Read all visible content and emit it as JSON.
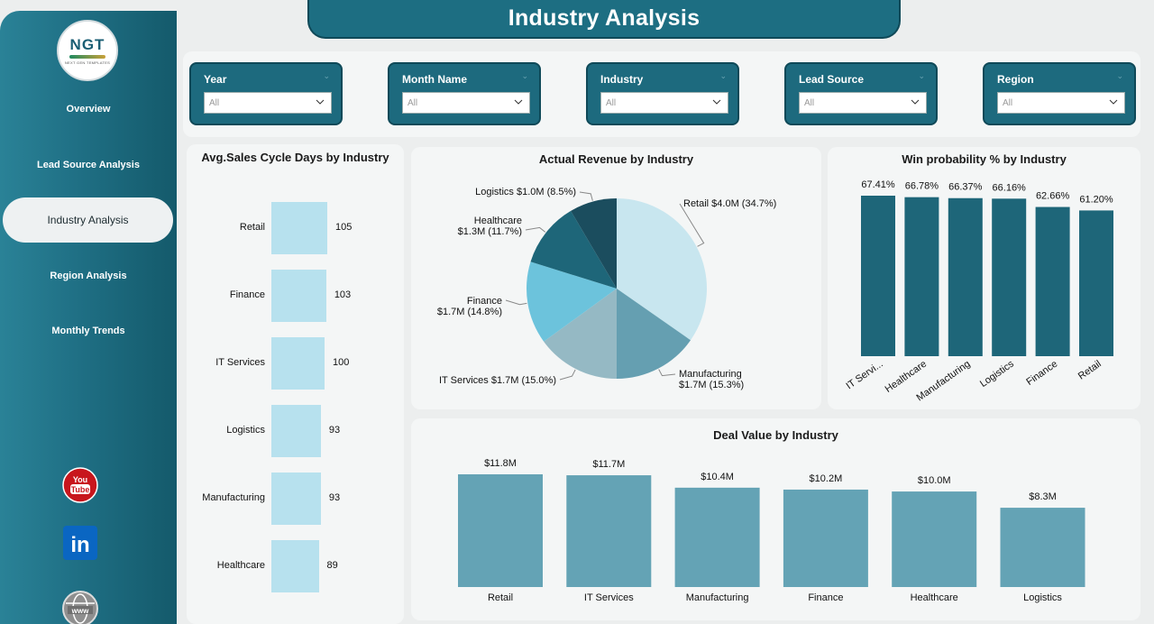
{
  "header": {
    "title": "Industry  Analysis"
  },
  "logo": {
    "mark": "NGT",
    "tagline": "NEXT GEN TEMPLATES"
  },
  "sidebar": {
    "items": [
      {
        "label": "Overview"
      },
      {
        "label": "Lead Source Analysis"
      },
      {
        "label": "Industry Analysis",
        "active": true
      },
      {
        "label": "Region Analysis"
      },
      {
        "label": "Monthly Trends"
      }
    ],
    "social": [
      {
        "icon": "youtube-icon",
        "label": "You Tube"
      },
      {
        "icon": "linkedin-icon",
        "label": "in"
      },
      {
        "icon": "globe-icon",
        "label": "www"
      }
    ]
  },
  "filters": [
    {
      "label": "Year",
      "value": "All"
    },
    {
      "label": "Month Name",
      "value": "All"
    },
    {
      "label": "Industry",
      "value": "All"
    },
    {
      "label": "Lead Source",
      "value": "All"
    },
    {
      "label": "Region",
      "value": "All"
    }
  ],
  "colors": {
    "sidebar": "#1f6f84",
    "hbar": "#b7e1ee",
    "win_bar": "#1e6679",
    "deal_bar": "#64a3b5",
    "pie": [
      "#c8e6ef",
      "#659fb1",
      "#95b9c4",
      "#6cc3dc",
      "#1e6679",
      "#1b4d5e"
    ]
  },
  "chart_data": [
    {
      "id": "avg-sales-cycle",
      "type": "bar",
      "orientation": "horizontal",
      "title": "Avg.Sales Cycle Days by Industry",
      "categories": [
        "Retail",
        "Finance",
        "IT Services",
        "Logistics",
        "Manufacturing",
        "Healthcare"
      ],
      "values": [
        105,
        103,
        100,
        93,
        93,
        89
      ],
      "value_labels": [
        "105",
        "103",
        "100",
        "93",
        "93",
        "89"
      ]
    },
    {
      "id": "actual-revenue",
      "type": "pie",
      "title": "Actual Revenue by Industry",
      "slices": [
        {
          "name": "Retail",
          "value": 4.0,
          "percent": 34.7,
          "label_lines": [
            "Retail $4.0M (34.7%)"
          ]
        },
        {
          "name": "Manufacturing",
          "value": 1.7,
          "percent": 15.3,
          "label_lines": [
            "Manufacturing",
            "$1.7M (15.3%)"
          ]
        },
        {
          "name": "IT Services",
          "value": 1.7,
          "percent": 15.0,
          "label_lines": [
            "IT Services $1.7M (15.0%)"
          ]
        },
        {
          "name": "Finance",
          "value": 1.7,
          "percent": 14.8,
          "label_lines": [
            "Finance",
            "$1.7M (14.8%)"
          ]
        },
        {
          "name": "Healthcare",
          "value": 1.3,
          "percent": 11.7,
          "label_lines": [
            "Healthcare",
            "$1.3M (11.7%)"
          ]
        },
        {
          "name": "Logistics",
          "value": 1.0,
          "percent": 8.5,
          "label_lines": [
            "Logistics $1.0M (8.5%)"
          ]
        }
      ]
    },
    {
      "id": "win-probability",
      "type": "bar",
      "title": "Win probability % by Industry",
      "categories": [
        "IT Servi...",
        "Healthcare",
        "Manufacturing",
        "Logistics",
        "Finance",
        "Retail"
      ],
      "values": [
        67.41,
        66.78,
        66.37,
        66.16,
        62.66,
        61.2
      ],
      "value_labels": [
        "67.41%",
        "66.78%",
        "66.37%",
        "66.16%",
        "62.66%",
        "61.20%"
      ],
      "ylim": [
        0,
        67.41
      ]
    },
    {
      "id": "deal-value",
      "type": "bar",
      "title": "Deal Value by Industry",
      "categories": [
        "Retail",
        "IT Services",
        "Manufacturing",
        "Finance",
        "Healthcare",
        "Logistics"
      ],
      "values": [
        11.8,
        11.7,
        10.4,
        10.2,
        10.0,
        8.3
      ],
      "value_labels": [
        "$11.8M",
        "$11.7M",
        "$10.4M",
        "$10.2M",
        "$10.0M",
        "$8.3M"
      ],
      "ylim": [
        0,
        11.8
      ]
    }
  ]
}
